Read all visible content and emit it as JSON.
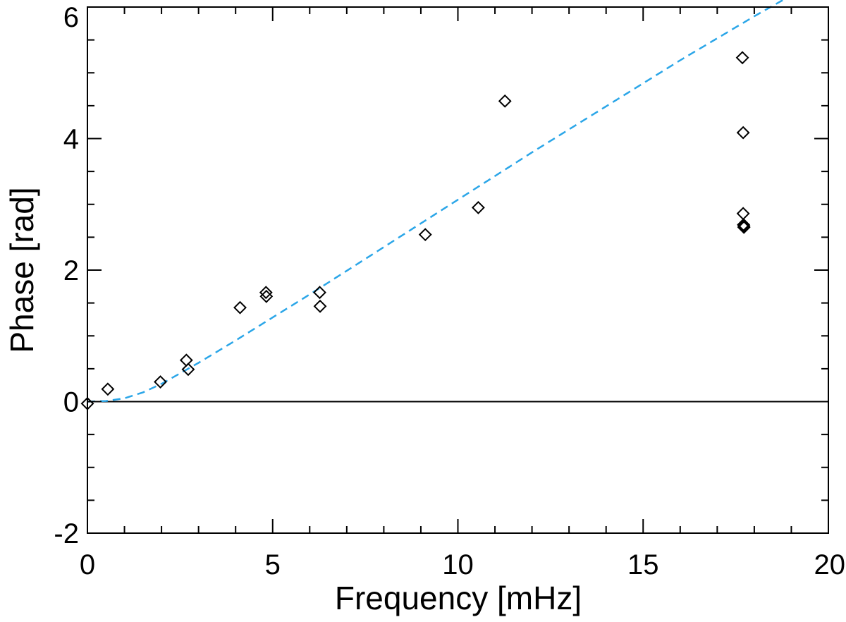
{
  "chart_data": {
    "type": "scatter",
    "title": "",
    "xlabel": "Frequency [mHz]",
    "ylabel": "Phase [rad]",
    "xlim": [
      0,
      20
    ],
    "ylim": [
      -2,
      6
    ],
    "x_ticks": [
      0,
      5,
      10,
      15,
      20
    ],
    "y_ticks": [
      -2,
      0,
      2,
      4,
      6
    ],
    "x_tick_labels": [
      "0",
      "5",
      "10",
      "15",
      "20"
    ],
    "y_tick_labels": [
      "-2",
      "0",
      "2",
      "4",
      "6"
    ],
    "grid": false,
    "zero_line": true,
    "points": {
      "marker": "diamond",
      "color": "#000000",
      "x": [
        0.0,
        0.55,
        1.97,
        2.67,
        2.72,
        4.12,
        4.82,
        4.83,
        6.27,
        6.28,
        9.12,
        10.55,
        11.27,
        17.68,
        17.7,
        17.7,
        17.71,
        17.72,
        17.72
      ],
      "y": [
        -0.03,
        0.19,
        0.3,
        0.63,
        0.49,
        1.43,
        1.66,
        1.6,
        1.66,
        1.45,
        2.54,
        2.95,
        4.57,
        5.23,
        4.09,
        2.86,
        2.69,
        2.65,
        2.67
      ]
    },
    "fit_curve": {
      "style": "dashed",
      "color": "#2BA6E8",
      "x": [
        0,
        0.5,
        1,
        1.5,
        2,
        3,
        4,
        5,
        6,
        8,
        10,
        12,
        14,
        16,
        18,
        20
      ],
      "y": [
        0.0,
        0.01,
        0.05,
        0.14,
        0.27,
        0.59,
        0.93,
        1.28,
        1.63,
        2.35,
        3.07,
        3.79,
        4.49,
        5.19,
        5.86,
        6.5
      ]
    }
  }
}
